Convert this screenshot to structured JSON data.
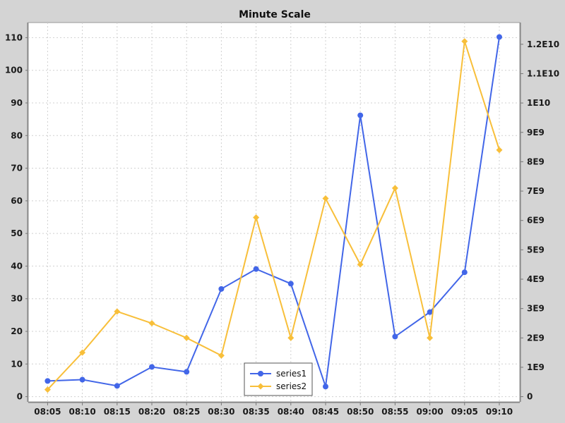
{
  "chart_data": {
    "type": "line",
    "title": "Minute Scale",
    "x": [
      "08:05",
      "08:10",
      "08:15",
      "08:20",
      "08:25",
      "08:30",
      "08:35",
      "08:40",
      "08:45",
      "08:50",
      "08:55",
      "09:00",
      "09:05",
      "09:10"
    ],
    "y_left": {
      "ticks": [
        "0",
        "10",
        "20",
        "30",
        "40",
        "50",
        "60",
        "70",
        "80",
        "90",
        "100",
        "110"
      ],
      "range": [
        0,
        110
      ]
    },
    "y_right": {
      "ticks": [
        "0",
        "1E9",
        "2E9",
        "3E9",
        "4E9",
        "5E9",
        "6E9",
        "7E9",
        "8E9",
        "9E9",
        "1E10",
        "1.1E10",
        "1.2E10"
      ],
      "range": [
        0,
        12000000000
      ]
    },
    "series": [
      {
        "name": "series1",
        "axis": "left",
        "color": "#4266e8",
        "marker": "circle",
        "values": [
          4.8,
          5.2,
          3.3,
          9.1,
          7.6,
          33.0,
          39.1,
          34.6,
          3.1,
          86.2,
          18.4,
          25.9,
          38.1,
          110.2
        ]
      },
      {
        "name": "series2",
        "axis": "right",
        "color": "#f8bf3a",
        "marker": "diamond",
        "values": [
          240000000,
          1500000000,
          2900000000,
          2500000000,
          2000000000,
          1400000000,
          6100000000,
          2000000000,
          6750000000,
          4500000000,
          7100000000,
          2000000000,
          12100000000,
          8400000000
        ]
      }
    ],
    "legend": "bottom-center",
    "grid": true,
    "colors": {
      "background": "#d4d4d4",
      "plot_background": "#ffffff",
      "grid": "#d0d0d0"
    }
  }
}
